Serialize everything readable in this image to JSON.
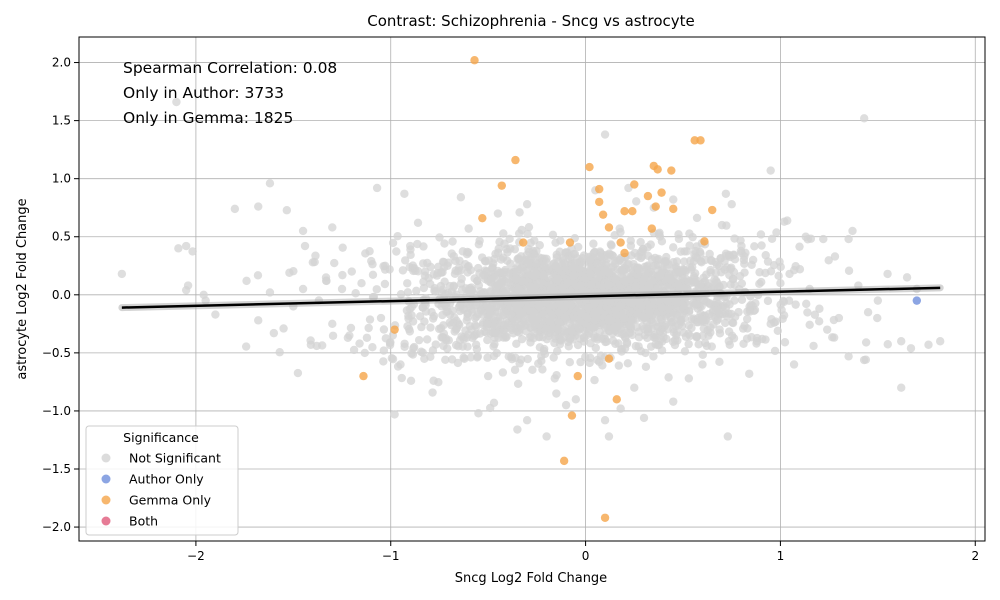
{
  "chart_data": {
    "type": "scatter",
    "title": "Contrast: Schizophrenia - Sncg vs astrocyte",
    "xlabel": "Sncg Log2 Fold Change",
    "ylabel": "astrocyte Log2 Fold Change",
    "xlim": [
      -2.6,
      2.05
    ],
    "ylim": [
      -2.12,
      2.22
    ],
    "xticks": [
      -2,
      -1,
      0,
      1,
      2
    ],
    "xtick_labels": [
      "−2",
      "−1",
      "0",
      "1",
      "2"
    ],
    "yticks": [
      -2.0,
      -1.5,
      -1.0,
      -0.5,
      0.0,
      0.5,
      1.0,
      1.5,
      2.0
    ],
    "ytick_labels": [
      "−2.0",
      "−1.5",
      "−1.0",
      "−0.5",
      "0.0",
      "0.5",
      "1.0",
      "1.5",
      "2.0"
    ],
    "grid": true,
    "annotations": [
      "Spearman Correlation: 0.08",
      "Only in Author: 3733",
      "Only in Gemma: 1825"
    ],
    "legend": {
      "title": "Significance",
      "placement": "lower-left",
      "entries": [
        {
          "label": "Not Significant",
          "color": "#d3d3d3"
        },
        {
          "label": "Author Only",
          "color": "#6f8fdc"
        },
        {
          "label": "Gemma Only",
          "color": "#f5a54a"
        },
        {
          "label": "Both",
          "color": "#e05a7a"
        }
      ]
    },
    "trend_line": {
      "x": [
        -2.38,
        1.82
      ],
      "y": [
        -0.11,
        0.06
      ],
      "color": "#000000"
    },
    "series": [
      {
        "name": "Not Significant",
        "color": "#d3d3d3",
        "points": [
          [
            -2.38,
            0.18
          ],
          [
            -2.1,
            1.66
          ],
          [
            -2.09,
            0.4
          ],
          [
            -2.05,
            0.42
          ],
          [
            -2.05,
            0.04
          ],
          [
            -2.04,
            0.08
          ],
          [
            -1.96,
            0.0
          ],
          [
            -1.9,
            -0.17
          ],
          [
            -1.8,
            0.74
          ],
          [
            -1.68,
            0.76
          ],
          [
            -1.62,
            0.96
          ],
          [
            -1.52,
            0.19
          ],
          [
            -1.45,
            0.55
          ],
          [
            -1.44,
            0.42
          ],
          [
            -1.41,
            -0.43
          ],
          [
            -1.38,
            -0.44
          ],
          [
            -1.3,
            0.58
          ],
          [
            -1.2,
            0.2
          ],
          [
            -1.1,
            0.29
          ],
          [
            -1.07,
            0.92
          ],
          [
            -0.98,
            -1.03
          ],
          [
            -0.93,
            0.87
          ],
          [
            -0.86,
            0.62
          ],
          [
            -0.64,
            0.84
          ],
          [
            -0.6,
            0.57
          ],
          [
            -0.55,
            -1.02
          ],
          [
            -0.47,
            -0.93
          ],
          [
            -0.35,
            -1.16
          ],
          [
            -0.3,
            -1.08
          ],
          [
            -0.2,
            -1.22
          ],
          [
            -0.1,
            -0.95
          ],
          [
            0.1,
            -1.08
          ],
          [
            0.12,
            -1.22
          ],
          [
            0.18,
            -0.98
          ],
          [
            0.3,
            -1.06
          ],
          [
            0.45,
            -0.92
          ],
          [
            0.73,
            -1.22
          ],
          [
            0.1,
            1.38
          ],
          [
            0.22,
            0.92
          ],
          [
            0.45,
            0.82
          ],
          [
            0.72,
            0.87
          ],
          [
            0.75,
            0.78
          ],
          [
            0.95,
            1.07
          ],
          [
            1.02,
            0.63
          ],
          [
            1.13,
            0.5
          ],
          [
            1.22,
            0.48
          ],
          [
            1.35,
            0.48
          ],
          [
            1.43,
            1.52
          ],
          [
            1.37,
            0.55
          ],
          [
            1.55,
            0.18
          ],
          [
            1.65,
            0.15
          ],
          [
            1.62,
            -0.4
          ],
          [
            1.62,
            -0.8
          ],
          [
            1.76,
            -0.43
          ],
          [
            1.82,
            -0.4
          ],
          [
            1.44,
            -0.41
          ],
          [
            1.35,
            -0.53
          ],
          [
            1.17,
            -0.44
          ],
          [
            1.07,
            -0.6
          ],
          [
            0.88,
            -0.4
          ],
          [
            0.84,
            -0.68
          ],
          [
            0.53,
            -0.72
          ],
          [
            -1.22,
            -0.37
          ],
          [
            -1.55,
            -0.29
          ],
          [
            -1.6,
            -0.33
          ],
          [
            -1.68,
            -0.22
          ],
          [
            -1.74,
            0.12
          ],
          [
            -1.33,
            0.12
          ],
          [
            -1.16,
            -0.42
          ],
          [
            -0.95,
            -0.6
          ],
          [
            -0.78,
            -0.74
          ],
          [
            -0.72,
            -0.56
          ],
          [
            1.24,
            -0.3
          ],
          [
            1.5,
            -0.05
          ],
          [
            1.3,
            -0.2
          ],
          [
            1.1,
            0.22
          ],
          [
            1.28,
            0.33
          ],
          [
            0.9,
            0.52
          ],
          [
            0.8,
            0.42
          ],
          [
            0.86,
            0.3
          ],
          [
            -1.25,
            0.05
          ],
          [
            -1.4,
            0.28
          ],
          [
            -1.5,
            -0.1
          ],
          [
            -1.3,
            -0.25
          ],
          [
            -1.15,
            0.1
          ],
          [
            -1.05,
            -0.2
          ],
          [
            1.0,
            0.1
          ],
          [
            1.15,
            0.05
          ],
          [
            1.2,
            -0.12
          ],
          [
            1.4,
            0.08
          ],
          [
            0.95,
            -0.25
          ],
          [
            -0.9,
            0.42
          ],
          [
            -0.88,
            -0.45
          ],
          [
            0.7,
            0.6
          ],
          [
            0.6,
            -0.6
          ],
          [
            -0.5,
            -0.7
          ],
          [
            -0.45,
            0.7
          ],
          [
            0.35,
            0.75
          ],
          [
            -0.3,
            0.78
          ],
          [
            0.25,
            -0.8
          ],
          [
            -0.15,
            -0.85
          ],
          [
            0.05,
            0.9
          ],
          [
            -0.05,
            -0.9
          ],
          [
            1.45,
            -0.15
          ],
          [
            -1.95,
            -0.05
          ],
          [
            -1.62,
            0.02
          ],
          [
            -1.45,
            0.05
          ],
          [
            1.7,
            0.05
          ]
        ]
      },
      {
        "name": "Author Only",
        "color": "#6f8fdc",
        "points": [
          [
            1.7,
            -0.05
          ]
        ]
      },
      {
        "name": "Gemma Only",
        "color": "#f5a54a",
        "points": [
          [
            -0.57,
            2.02
          ],
          [
            -0.36,
            1.16
          ],
          [
            0.02,
            1.1
          ],
          [
            0.56,
            1.33
          ],
          [
            0.59,
            1.33
          ],
          [
            0.35,
            1.11
          ],
          [
            0.37,
            1.08
          ],
          [
            0.44,
            1.07
          ],
          [
            -0.43,
            0.94
          ],
          [
            0.25,
            0.95
          ],
          [
            0.07,
            0.91
          ],
          [
            0.39,
            0.88
          ],
          [
            0.32,
            0.85
          ],
          [
            0.07,
            0.8
          ],
          [
            0.36,
            0.76
          ],
          [
            0.45,
            0.74
          ],
          [
            0.65,
            0.73
          ],
          [
            0.2,
            0.72
          ],
          [
            0.24,
            0.72
          ],
          [
            -0.53,
            0.66
          ],
          [
            0.09,
            0.69
          ],
          [
            0.12,
            0.58
          ],
          [
            0.34,
            0.57
          ],
          [
            -0.32,
            0.45
          ],
          [
            0.18,
            0.45
          ],
          [
            0.2,
            0.36
          ],
          [
            0.61,
            0.46
          ],
          [
            -0.08,
            0.45
          ],
          [
            -0.98,
            -0.3
          ],
          [
            -1.14,
            -0.7
          ],
          [
            -0.04,
            -0.7
          ],
          [
            0.12,
            -0.55
          ],
          [
            0.16,
            -0.9
          ],
          [
            -0.07,
            -1.04
          ],
          [
            -0.11,
            -1.43
          ],
          [
            0.1,
            -1.92
          ]
        ]
      },
      {
        "name": "Both",
        "color": "#e05a7a",
        "points": []
      }
    ],
    "dense_cloud": {
      "color": "#d3d3d3",
      "x_mean": -0.02,
      "x_sd": 0.34,
      "y_mean": -0.03,
      "y_sd": 0.23
    }
  }
}
